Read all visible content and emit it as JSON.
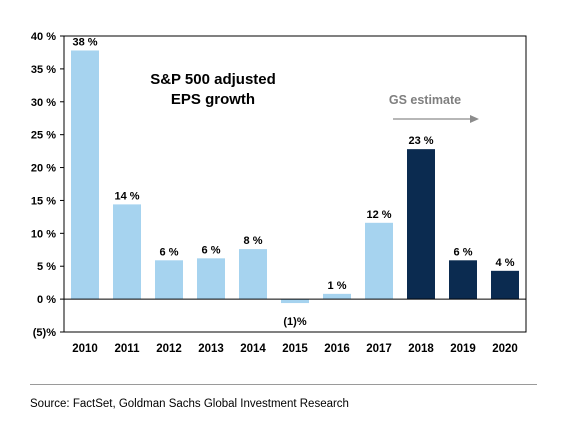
{
  "chart_data": {
    "type": "bar",
    "title_lines": [
      "S&P 500 adjusted",
      "EPS growth"
    ],
    "categories": [
      "2010",
      "2011",
      "2012",
      "2013",
      "2014",
      "2015",
      "2016",
      "2017",
      "2018",
      "2019",
      "2020"
    ],
    "values": [
      38,
      14,
      6,
      6,
      8,
      -1,
      1,
      12,
      23,
      6,
      4
    ],
    "plotted_values": [
      37.8,
      14.4,
      5.9,
      6.2,
      7.6,
      -0.6,
      0.8,
      11.6,
      22.8,
      5.9,
      4.3
    ],
    "data_labels": [
      "38 %",
      "14 %",
      "6 %",
      "6 %",
      "8 %",
      "(1)%",
      "1 %",
      "12 %",
      "23 %",
      "6 %",
      "4 %"
    ],
    "estimate_flags": [
      false,
      false,
      false,
      false,
      false,
      false,
      false,
      false,
      true,
      true,
      true
    ],
    "y_ticks": [
      40,
      35,
      30,
      25,
      20,
      15,
      10,
      5,
      0,
      -5
    ],
    "y_tick_labels": [
      "40 %",
      "35 %",
      "30 %",
      "25 %",
      "20 %",
      "15 %",
      "10 %",
      "5 %",
      "0 %",
      "(5)%"
    ],
    "ylim": [
      -5,
      40
    ],
    "xlabel": "",
    "ylabel": "",
    "grid": false,
    "annotation": "GS estimate",
    "colors": {
      "actual": "#a6d3ef",
      "estimate": "#0b2b50",
      "annotation": "#7f7f7f",
      "axis": "#000000"
    }
  },
  "source_text": "Source: FactSet, Goldman Sachs Global Investment Research"
}
